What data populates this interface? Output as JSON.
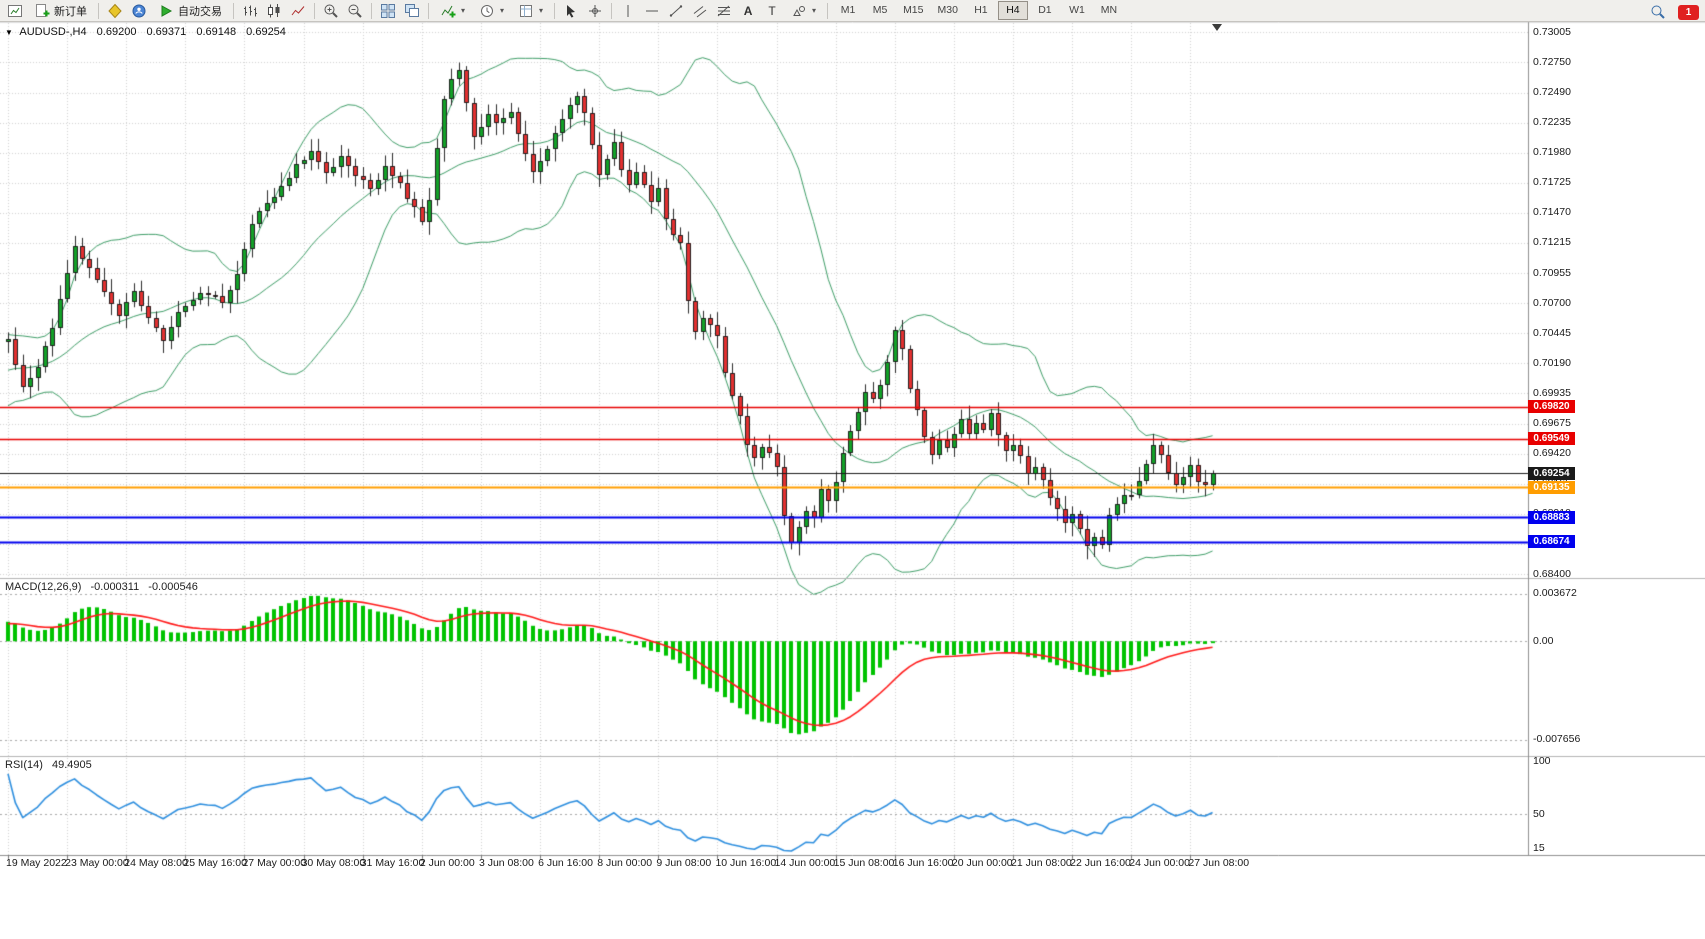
{
  "toolbar": {
    "new_order_label": "新订单",
    "autotrading_label": "自动交易",
    "timeframes": [
      "M1",
      "M5",
      "M15",
      "M30",
      "H1",
      "H4",
      "D1",
      "W1",
      "MN"
    ],
    "active_timeframe": "H4",
    "notification_count": "1",
    "icon_names": [
      "new-chart-icon",
      "new-order-icon",
      "metaeditor-icon",
      "market-watch-icon",
      "autotrading-play-icon",
      "bar-chart-icon",
      "candlestick-chart-icon",
      "line-chart-icon",
      "zoom-in-icon",
      "zoom-out-icon",
      "tile-windows-icon",
      "cascade-windows-icon",
      "indicators-icon",
      "periods-icon",
      "templates-icon",
      "cursor-icon",
      "crosshair-icon",
      "vertical-line-icon",
      "horizontal-line-icon",
      "trendline-icon",
      "channel-icon",
      "fibonacci-icon",
      "text-icon",
      "label-icon",
      "shapes-icon",
      "dropdown-caret-icon",
      "search-icon",
      "notification-icon",
      "chart-shift-marker"
    ]
  },
  "chart": {
    "info": {
      "symbol": "AUDUSD-,H4",
      "open": "0.69200",
      "high": "0.69371",
      "low": "0.69148",
      "close": "0.69254"
    }
  },
  "macd_panel": {
    "name": "MACD(12,26,9)",
    "main_value": "-0.000311",
    "signal_value": "-0.000546",
    "axis_labels": [
      "0.003672",
      "0.00",
      "-0.007656"
    ]
  },
  "rsi_panel": {
    "name": "RSI(14)",
    "value": "49.4905",
    "axis_labels": [
      "100",
      "50",
      "15"
    ]
  },
  "chart_data": {
    "type": "candlestick",
    "symbol": "AUDUSD-",
    "timeframe": "H4",
    "title": "AUDUSD-,H4",
    "current_ohlc": {
      "open": 0.692,
      "high": 0.69371,
      "low": 0.69148,
      "close": 0.69254
    },
    "y_axis": {
      "min": 0.684,
      "max": 0.73005,
      "tick_labels": [
        "0.73005",
        "0.72750",
        "0.72490",
        "0.72235",
        "0.71980",
        "0.71725",
        "0.71470",
        "0.71215",
        "0.70955",
        "0.70700",
        "0.70445",
        "0.70190",
        "0.69935",
        "0.69675",
        "0.69420",
        "0.69165",
        "0.68910",
        "0.68655",
        "0.68400"
      ]
    },
    "x_axis": {
      "bars_per_label": 8,
      "labels": [
        "19 May 2022",
        "23 May 00:00",
        "24 May 08:00",
        "25 May 16:00",
        "27 May 00:00",
        "30 May 08:00",
        "31 May 16:00",
        "2 Jun 00:00",
        "3 Jun 08:00",
        "6 Jun 16:00",
        "8 Jun 00:00",
        "9 Jun 08:00",
        "10 Jun 16:00",
        "14 Jun 00:00",
        "15 Jun 08:00",
        "16 Jun 16:00",
        "20 Jun 00:00",
        "21 Jun 08:00",
        "22 Jun 16:00",
        "24 Jun 00:00",
        "27 Jun 08:00"
      ]
    },
    "num_bars": 164,
    "close_anchors": [
      [
        0,
        0.7038
      ],
      [
        2,
        0.7
      ],
      [
        4,
        0.7015
      ],
      [
        6,
        0.7048
      ],
      [
        8,
        0.7095
      ],
      [
        9,
        0.7118
      ],
      [
        11,
        0.71
      ],
      [
        13,
        0.7078
      ],
      [
        15,
        0.706
      ],
      [
        17,
        0.7082
      ],
      [
        19,
        0.7058
      ],
      [
        21,
        0.704
      ],
      [
        23,
        0.7062
      ],
      [
        26,
        0.708
      ],
      [
        29,
        0.7072
      ],
      [
        31,
        0.7095
      ],
      [
        33,
        0.714
      ],
      [
        35,
        0.7155
      ],
      [
        37,
        0.717
      ],
      [
        39,
        0.7188
      ],
      [
        41,
        0.7198
      ],
      [
        43,
        0.718
      ],
      [
        45,
        0.7195
      ],
      [
        47,
        0.718
      ],
      [
        49,
        0.7165
      ],
      [
        51,
        0.7185
      ],
      [
        53,
        0.7172
      ],
      [
        55,
        0.715
      ],
      [
        56,
        0.7138
      ],
      [
        57,
        0.716
      ],
      [
        58,
        0.72
      ],
      [
        59,
        0.7245
      ],
      [
        60,
        0.7262
      ],
      [
        61,
        0.727
      ],
      [
        62,
        0.724
      ],
      [
        63,
        0.7212
      ],
      [
        64,
        0.7222
      ],
      [
        65,
        0.7232
      ],
      [
        66,
        0.7222
      ],
      [
        68,
        0.7232
      ],
      [
        69,
        0.7212
      ],
      [
        70,
        0.7195
      ],
      [
        71,
        0.718
      ],
      [
        72,
        0.7192
      ],
      [
        74,
        0.7215
      ],
      [
        76,
        0.724
      ],
      [
        77,
        0.7245
      ],
      [
        78,
        0.723
      ],
      [
        79,
        0.7205
      ],
      [
        80,
        0.718
      ],
      [
        81,
        0.7192
      ],
      [
        82,
        0.7205
      ],
      [
        83,
        0.7182
      ],
      [
        84,
        0.717
      ],
      [
        85,
        0.718
      ],
      [
        86,
        0.7172
      ],
      [
        87,
        0.7158
      ],
      [
        88,
        0.717
      ],
      [
        89,
        0.714
      ],
      [
        90,
        0.7128
      ],
      [
        91,
        0.712
      ],
      [
        92,
        0.7072
      ],
      [
        93,
        0.7048
      ],
      [
        94,
        0.7058
      ],
      [
        95,
        0.7052
      ],
      [
        96,
        0.704
      ],
      [
        97,
        0.701
      ],
      [
        98,
        0.699
      ],
      [
        99,
        0.6975
      ],
      [
        100,
        0.695
      ],
      [
        101,
        0.6938
      ],
      [
        102,
        0.695
      ],
      [
        103,
        0.6942
      ],
      [
        104,
        0.693
      ],
      [
        105,
        0.689
      ],
      [
        106,
        0.6865
      ],
      [
        107,
        0.688
      ],
      [
        108,
        0.6895
      ],
      [
        109,
        0.689
      ],
      [
        110,
        0.6912
      ],
      [
        111,
        0.69
      ],
      [
        112,
        0.692
      ],
      [
        113,
        0.6942
      ],
      [
        114,
        0.696
      ],
      [
        115,
        0.698
      ],
      [
        116,
        0.6995
      ],
      [
        117,
        0.6988
      ],
      [
        118,
        0.7
      ],
      [
        119,
        0.7022
      ],
      [
        120,
        0.7045
      ],
      [
        121,
        0.703
      ],
      [
        122,
        0.6998
      ],
      [
        123,
        0.698
      ],
      [
        124,
        0.6955
      ],
      [
        125,
        0.694
      ],
      [
        126,
        0.6952
      ],
      [
        127,
        0.6945
      ],
      [
        128,
        0.696
      ],
      [
        129,
        0.6972
      ],
      [
        130,
        0.6958
      ],
      [
        131,
        0.697
      ],
      [
        132,
        0.6962
      ],
      [
        133,
        0.6975
      ],
      [
        134,
        0.6958
      ],
      [
        135,
        0.6945
      ],
      [
        136,
        0.6952
      ],
      [
        137,
        0.6938
      ],
      [
        138,
        0.6925
      ],
      [
        139,
        0.6932
      ],
      [
        140,
        0.6918
      ],
      [
        141,
        0.6905
      ],
      [
        142,
        0.6895
      ],
      [
        143,
        0.6885
      ],
      [
        144,
        0.6892
      ],
      [
        145,
        0.6878
      ],
      [
        146,
        0.6862
      ],
      [
        147,
        0.6872
      ],
      [
        148,
        0.6865
      ],
      [
        149,
        0.6888
      ],
      [
        150,
        0.6898
      ],
      [
        151,
        0.6908
      ],
      [
        152,
        0.6905
      ],
      [
        153,
        0.692
      ],
      [
        154,
        0.6935
      ],
      [
        155,
        0.695
      ],
      [
        156,
        0.694
      ],
      [
        157,
        0.6928
      ],
      [
        158,
        0.6915
      ],
      [
        159,
        0.6922
      ],
      [
        160,
        0.693
      ],
      [
        161,
        0.692
      ],
      [
        162,
        0.6916
      ],
      [
        163,
        0.69254
      ]
    ],
    "hlines": [
      {
        "value": 0.6982,
        "label": "0.69820",
        "color": "#e80000",
        "width": 1.5,
        "kind": "resistance-line"
      },
      {
        "value": 0.69549,
        "label": "0.69549",
        "color": "#e80000",
        "width": 1.5,
        "kind": "resistance-line"
      },
      {
        "value": 0.69254,
        "label": "0.69254",
        "color": "#1a1a1a",
        "width": 1,
        "kind": "current-price-line"
      },
      {
        "value": 0.69135,
        "label": "0.69135",
        "color": "#ff9d00",
        "width": 2,
        "kind": "level-line"
      },
      {
        "value": 0.68883,
        "label": "0.68883",
        "color": "#0000ee",
        "width": 2,
        "kind": "support-line"
      },
      {
        "value": 0.68674,
        "label": "0.68674",
        "color": "#0000ee",
        "width": 2,
        "kind": "support-line"
      }
    ],
    "indicators": {
      "bollinger": {
        "label": "Bollinger Bands (20,2)",
        "color": "#3f9e68"
      },
      "macd": {
        "label": "MACD(12,26,9)",
        "main_value": -0.000311,
        "signal_value": -0.000546,
        "histogram_color": "#00c300",
        "signal_color": "#ff1a1a",
        "scale_max": 0.0046,
        "scale_min": -0.0086,
        "levels": [
          0.003672,
          0,
          -0.007656
        ]
      },
      "rsi": {
        "label": "RSI(14)",
        "last_value": 49.4905,
        "color": "#2e8fdf",
        "scale_max": 100,
        "scale_min": 15,
        "label_levels": [
          100,
          50,
          15
        ],
        "dash_levels": [
          50
        ]
      }
    },
    "colors": {
      "up": "#12a128",
      "down": "#e23030",
      "candle_border": "#1f1f1f",
      "wick": "#2a2a2a",
      "grid": "#d2d2d2",
      "axis_line": "#8f8f8f",
      "separator": "#b4b4b4",
      "axis_text": "#1a1a1a"
    }
  }
}
